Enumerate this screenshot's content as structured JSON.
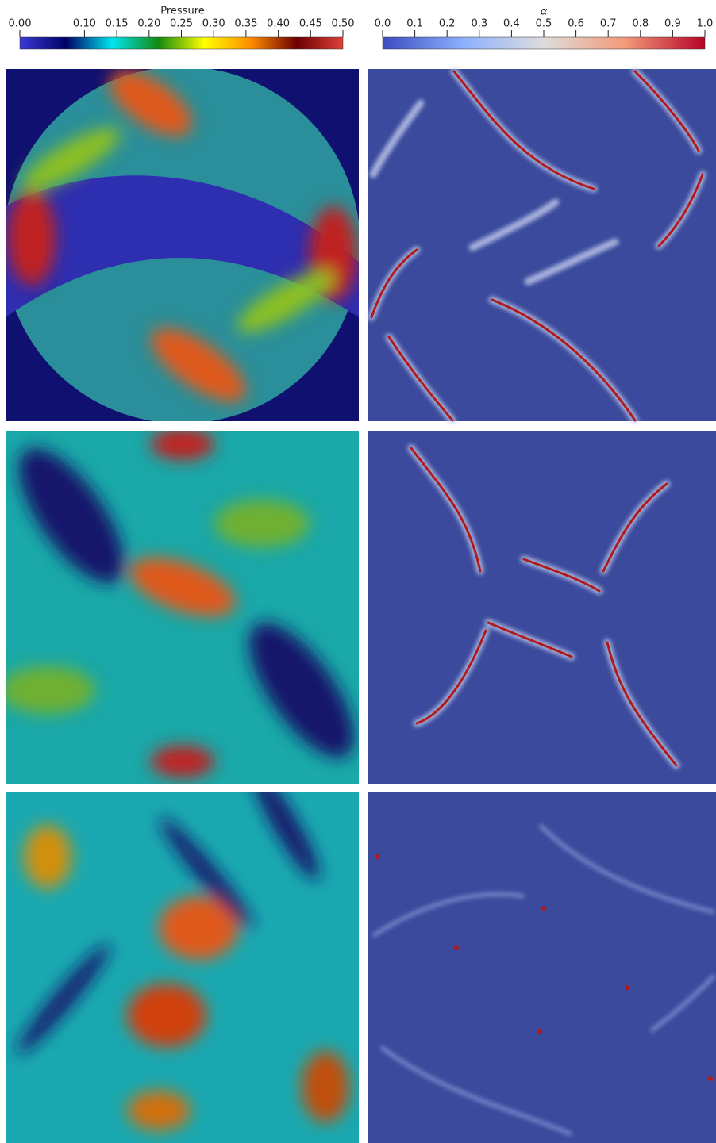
{
  "chart_data": [
    {
      "type": "colorbar",
      "title": "Pressure",
      "colors": [
        "#3b3bd6",
        "#000066",
        "#00e5ee",
        "#128a12",
        "#ffff00",
        "#ff8c00",
        "#6b0000",
        "#e0403a"
      ],
      "xlim": [
        0,
        0.5
      ],
      "xticks": [
        {
          "value": 0,
          "label": "0.00"
        },
        {
          "value": 0.1,
          "label": "0.10"
        },
        {
          "value": 0.15,
          "label": "0.15"
        },
        {
          "value": 0.2,
          "label": "0.20"
        },
        {
          "value": 0.25,
          "label": "0.25"
        },
        {
          "value": 0.3,
          "label": "0.30"
        },
        {
          "value": 0.35,
          "label": "0.35"
        },
        {
          "value": 0.4,
          "label": "0.40"
        },
        {
          "value": 0.45,
          "label": "0.45"
        },
        {
          "value": 0.5,
          "label": "0.50"
        }
      ]
    },
    {
      "type": "colorbar",
      "title": "α",
      "colors": [
        "#3b4cc0",
        "#8db0fe",
        "#dddddd",
        "#f49a7b",
        "#b40426"
      ],
      "xlim": [
        0,
        1
      ],
      "xticks": [
        {
          "value": 0,
          "label": "0.0"
        },
        {
          "value": 0.1,
          "label": "0.1"
        },
        {
          "value": 0.2,
          "label": "0.2"
        },
        {
          "value": 0.3,
          "label": "0.3"
        },
        {
          "value": 0.4,
          "label": "0.4"
        },
        {
          "value": 0.5,
          "label": "0.5"
        },
        {
          "value": 0.6,
          "label": "0.6"
        },
        {
          "value": 0.7,
          "label": "0.7"
        },
        {
          "value": 0.8,
          "label": "0.8"
        },
        {
          "value": 0.9,
          "label": "0.9"
        },
        {
          "value": 1,
          "label": "1.0"
        }
      ]
    }
  ]
}
